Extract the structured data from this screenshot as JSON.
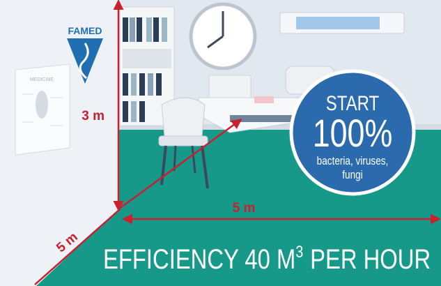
{
  "logo": "FAMED",
  "poster": "MEDICINE",
  "dimensions": {
    "height": "3 m",
    "width": "5 m",
    "depth": "5 m"
  },
  "badge": {
    "line1": "START",
    "line2": "100%",
    "line3": "bacteria, viruses,",
    "line4": "fungi"
  },
  "footer": {
    "text": "EFFICIENCY 40 M",
    "superscript": "3",
    "suffix": "PER HOUR"
  }
}
